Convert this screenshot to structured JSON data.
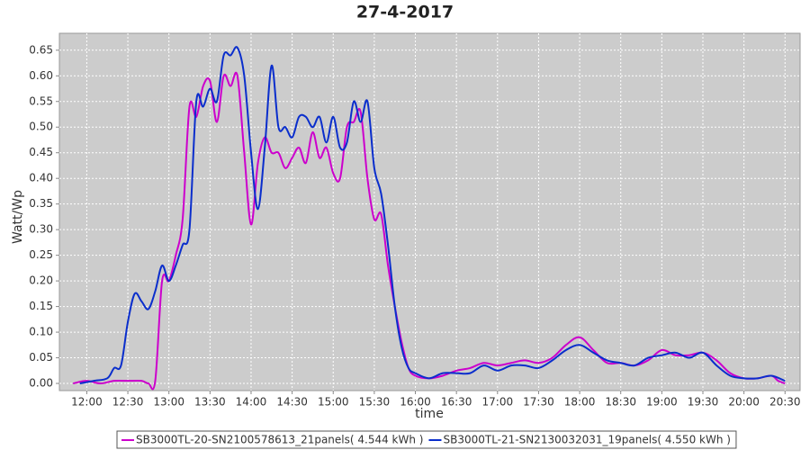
{
  "chart_data": {
    "type": "line",
    "title": "27-4-2017",
    "x_label": "time",
    "y_label": "Watt/Wp",
    "xlim": [
      "11:40",
      "20:41"
    ],
    "xticks": [
      "12:00",
      "12:30",
      "13:00",
      "13:30",
      "14:00",
      "14:30",
      "15:00",
      "15:30",
      "16:00",
      "16:30",
      "17:00",
      "17:30",
      "18:00",
      "18:30",
      "19:00",
      "19:30",
      "20:00",
      "20:30"
    ],
    "ylim": [
      -0.014,
      0.683
    ],
    "yticks": [
      {
        "value": 0,
        "label": "0.00"
      },
      {
        "value": 0.05,
        "label": "0.05"
      },
      {
        "value": 0.1,
        "label": "0.10"
      },
      {
        "value": 0.15,
        "label": "0.15"
      },
      {
        "value": 0.2,
        "label": "0.20"
      },
      {
        "value": 0.25,
        "label": "0.25"
      },
      {
        "value": 0.3,
        "label": "0.30"
      },
      {
        "value": 0.35,
        "label": "0.35"
      },
      {
        "value": 0.4,
        "label": "0.40"
      },
      {
        "value": 0.45,
        "label": "0.45"
      },
      {
        "value": 0.5,
        "label": "0.50"
      },
      {
        "value": 0.55,
        "label": "0.55"
      },
      {
        "value": 0.6,
        "label": "0.60"
      },
      {
        "value": 0.65,
        "label": "0.65"
      }
    ],
    "grid": true,
    "series": [
      {
        "name": "SB3000TL-20-SN2100578613_21panels( 4.544 kWh )",
        "color": "#cc00cc",
        "x": [
          "11:50",
          "12:00",
          "12:10",
          "12:20",
          "12:30",
          "12:40",
          "12:45",
          "12:50",
          "12:55",
          "13:00",
          "13:05",
          "13:10",
          "13:15",
          "13:20",
          "13:25",
          "13:30",
          "13:35",
          "13:40",
          "13:45",
          "13:50",
          "13:55",
          "14:00",
          "14:05",
          "14:10",
          "14:15",
          "14:20",
          "14:25",
          "14:30",
          "14:35",
          "14:40",
          "14:45",
          "14:50",
          "14:55",
          "15:00",
          "15:05",
          "15:10",
          "15:15",
          "15:20",
          "15:25",
          "15:30",
          "15:35",
          "15:40",
          "15:45",
          "15:50",
          "15:55",
          "16:00",
          "16:10",
          "16:20",
          "16:30",
          "16:40",
          "16:50",
          "17:00",
          "17:10",
          "17:20",
          "17:30",
          "17:40",
          "17:50",
          "18:00",
          "18:10",
          "18:20",
          "18:30",
          "18:40",
          "18:50",
          "19:00",
          "19:10",
          "19:20",
          "19:30",
          "19:40",
          "19:50",
          "20:00",
          "20:10",
          "20:20",
          "20:25",
          "20:30"
        ],
        "values": [
          0,
          0.005,
          0,
          0.005,
          0.005,
          0.005,
          0,
          0.005,
          0.2,
          0.2,
          0.25,
          0.32,
          0.54,
          0.52,
          0.58,
          0.59,
          0.51,
          0.6,
          0.58,
          0.6,
          0.45,
          0.31,
          0.43,
          0.48,
          0.45,
          0.45,
          0.42,
          0.44,
          0.46,
          0.43,
          0.49,
          0.44,
          0.46,
          0.41,
          0.4,
          0.5,
          0.51,
          0.53,
          0.4,
          0.32,
          0.33,
          0.23,
          0.15,
          0.08,
          0.03,
          0.015,
          0.01,
          0.015,
          0.025,
          0.03,
          0.04,
          0.035,
          0.04,
          0.045,
          0.04,
          0.05,
          0.075,
          0.09,
          0.065,
          0.04,
          0.04,
          0.035,
          0.045,
          0.065,
          0.055,
          0.055,
          0.06,
          0.045,
          0.02,
          0.01,
          0.01,
          0.015,
          0.005,
          0
        ]
      },
      {
        "name": "SB3000TL-21-SN2130032031_19panels( 4.550 kWh )",
        "color": "#0a2ecc",
        "x": [
          "11:55",
          "12:05",
          "12:15",
          "12:20",
          "12:25",
          "12:30",
          "12:35",
          "12:40",
          "12:45",
          "12:50",
          "12:55",
          "13:00",
          "13:05",
          "13:10",
          "13:15",
          "13:20",
          "13:25",
          "13:30",
          "13:35",
          "13:40",
          "13:45",
          "13:50",
          "13:55",
          "14:00",
          "14:05",
          "14:10",
          "14:15",
          "14:20",
          "14:25",
          "14:30",
          "14:35",
          "14:40",
          "14:45",
          "14:50",
          "14:55",
          "15:00",
          "15:05",
          "15:10",
          "15:15",
          "15:20",
          "15:25",
          "15:30",
          "15:35",
          "15:40",
          "15:45",
          "15:50",
          "15:55",
          "16:00",
          "16:10",
          "16:20",
          "16:30",
          "16:40",
          "16:50",
          "17:00",
          "17:10",
          "17:20",
          "17:30",
          "17:40",
          "17:50",
          "18:00",
          "18:10",
          "18:20",
          "18:30",
          "18:40",
          "18:50",
          "19:00",
          "19:10",
          "19:20",
          "19:30",
          "19:40",
          "19:50",
          "20:00",
          "20:10",
          "20:20",
          "20:30"
        ],
        "values": [
          0,
          0.005,
          0.01,
          0.03,
          0.035,
          0.12,
          0.175,
          0.16,
          0.145,
          0.18,
          0.23,
          0.2,
          0.23,
          0.27,
          0.3,
          0.55,
          0.54,
          0.575,
          0.55,
          0.64,
          0.64,
          0.655,
          0.6,
          0.45,
          0.34,
          0.46,
          0.62,
          0.5,
          0.5,
          0.48,
          0.52,
          0.52,
          0.5,
          0.52,
          0.47,
          0.52,
          0.46,
          0.47,
          0.55,
          0.51,
          0.55,
          0.42,
          0.37,
          0.27,
          0.15,
          0.07,
          0.03,
          0.02,
          0.01,
          0.02,
          0.02,
          0.02,
          0.035,
          0.025,
          0.035,
          0.035,
          0.03,
          0.045,
          0.065,
          0.075,
          0.06,
          0.045,
          0.04,
          0.035,
          0.05,
          0.055,
          0.06,
          0.05,
          0.06,
          0.035,
          0.015,
          0.01,
          0.01,
          0.015,
          0.005
        ]
      }
    ]
  }
}
